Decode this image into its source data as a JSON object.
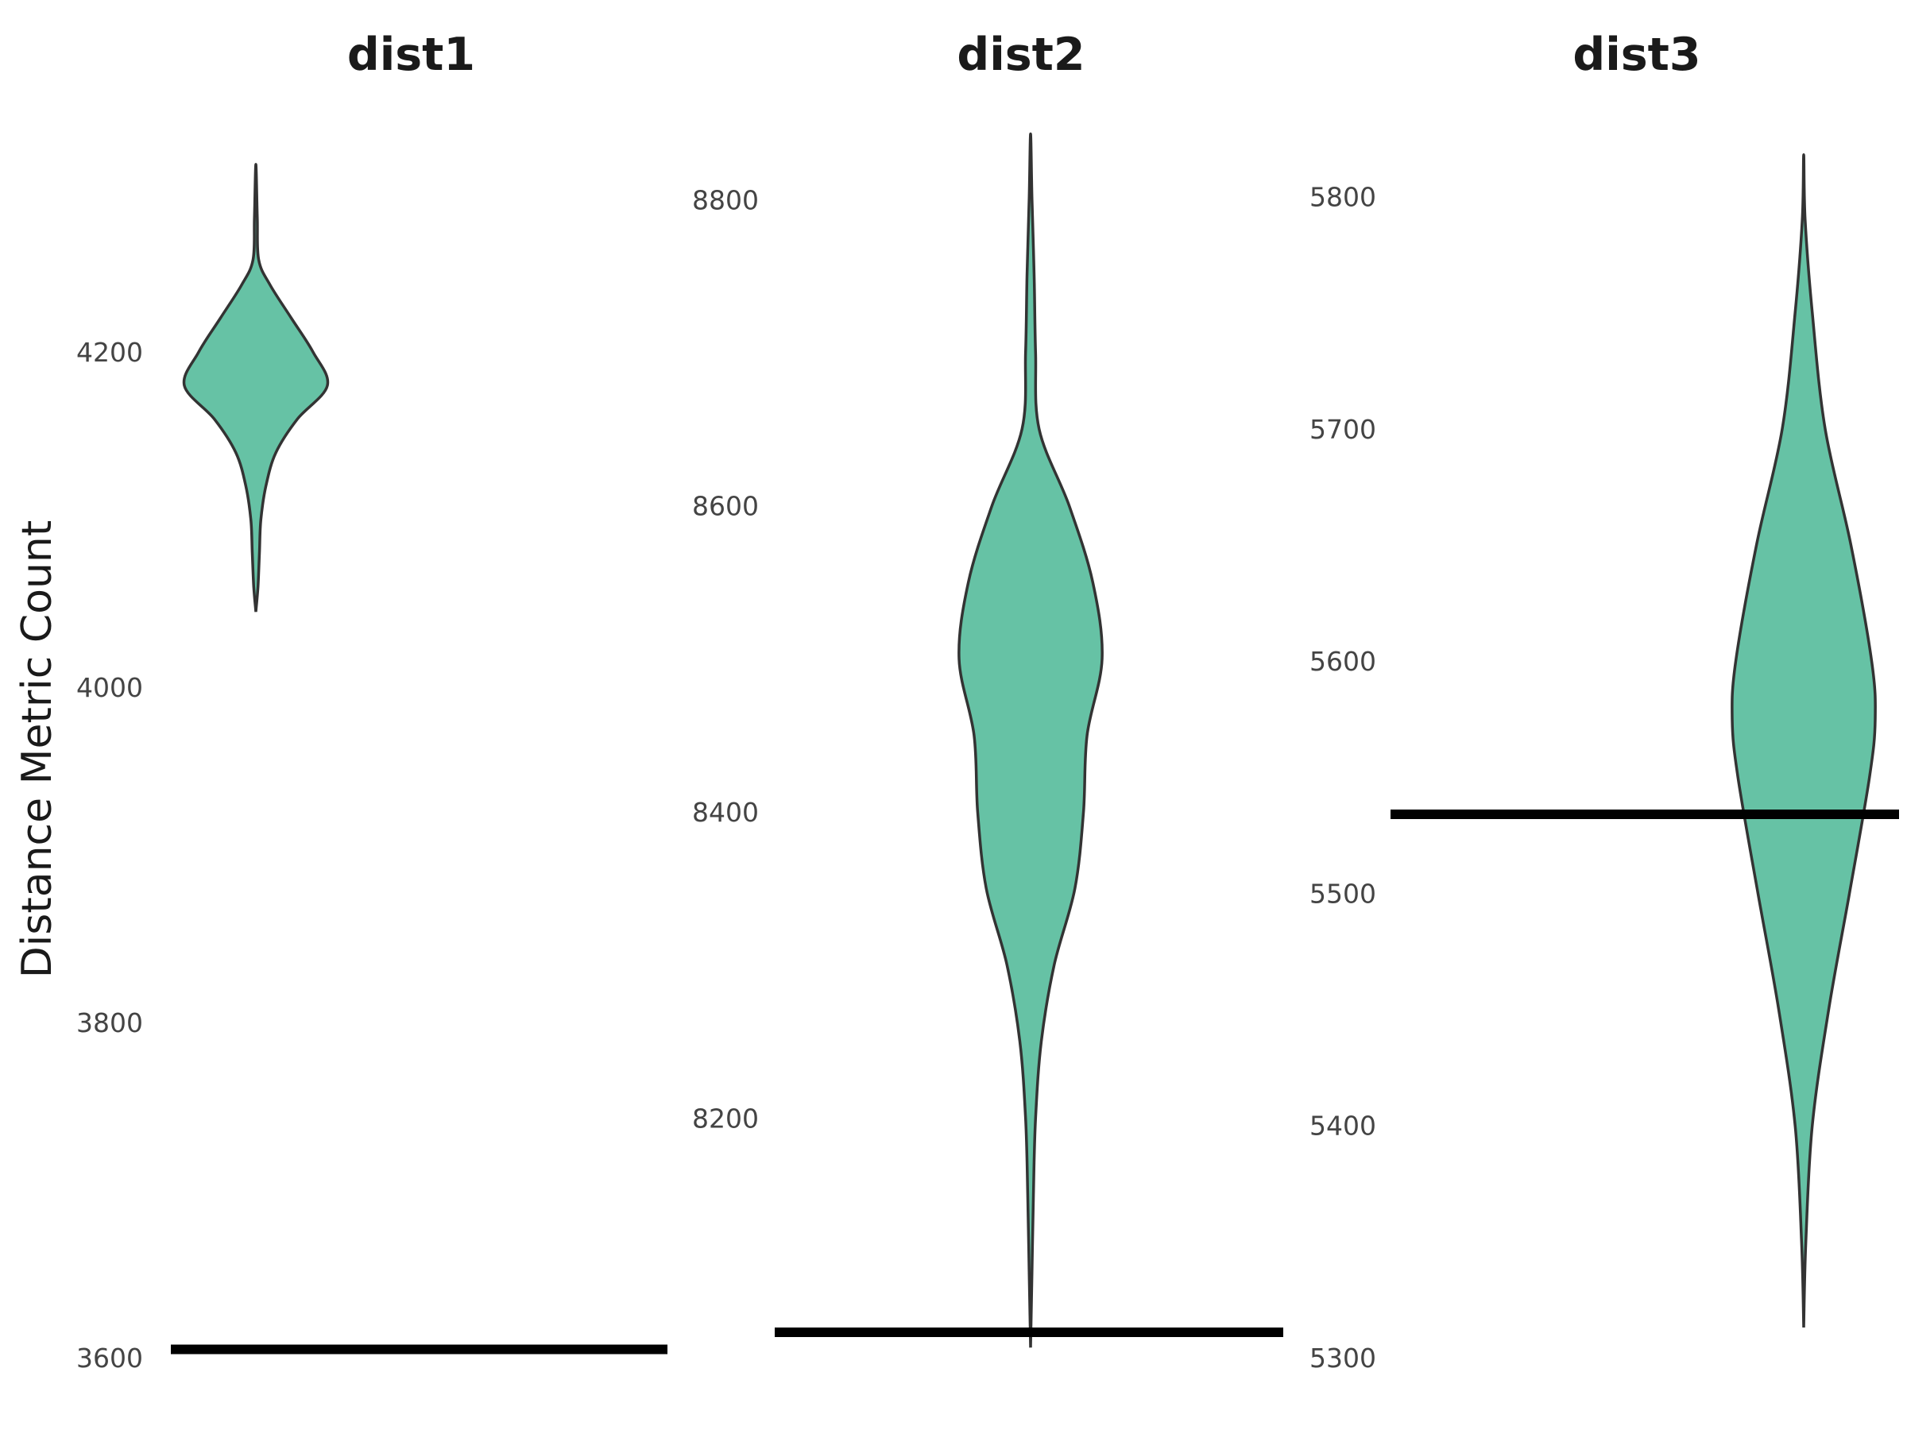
{
  "chart_data": {
    "type": "violin",
    "ylabel": "Distance Metric Count",
    "fill_color": "#66c2a5",
    "outline_color": "#333333",
    "reference_line_color": "#000000",
    "grid": false,
    "legend": "none",
    "panels": [
      {
        "title": "dist1",
        "ylim": [
          3600,
          4320
        ],
        "yticks": [
          3600,
          3800,
          4000,
          4200
        ],
        "tick_labels": [
          "3600",
          "3800",
          "4000",
          "4200"
        ],
        "reference_line": 3605,
        "density": [
          {
            "y": 4045,
            "w": 0.0
          },
          {
            "y": 4060,
            "w": 0.03
          },
          {
            "y": 4080,
            "w": 0.05
          },
          {
            "y": 4100,
            "w": 0.07
          },
          {
            "y": 4120,
            "w": 0.14
          },
          {
            "y": 4140,
            "w": 0.28
          },
          {
            "y": 4160,
            "w": 0.58
          },
          {
            "y": 4180,
            "w": 1.0
          },
          {
            "y": 4200,
            "w": 0.8
          },
          {
            "y": 4220,
            "w": 0.5
          },
          {
            "y": 4240,
            "w": 0.2
          },
          {
            "y": 4255,
            "w": 0.04
          },
          {
            "y": 4280,
            "w": 0.02
          },
          {
            "y": 4312,
            "w": 0.0
          }
        ]
      },
      {
        "title": "dist2",
        "ylim": [
          8060,
          8850
        ],
        "yticks": [
          8200,
          8400,
          8600,
          8800
        ],
        "tick_labels": [
          "8200",
          "8400",
          "8600",
          "8800"
        ],
        "reference_line": 8060,
        "density": [
          {
            "y": 8050,
            "w": 0.0
          },
          {
            "y": 8100,
            "w": 0.02
          },
          {
            "y": 8150,
            "w": 0.04
          },
          {
            "y": 8200,
            "w": 0.07
          },
          {
            "y": 8250,
            "w": 0.15
          },
          {
            "y": 8300,
            "w": 0.33
          },
          {
            "y": 8350,
            "w": 0.62
          },
          {
            "y": 8400,
            "w": 0.74
          },
          {
            "y": 8450,
            "w": 0.79
          },
          {
            "y": 8500,
            "w": 1.0
          },
          {
            "y": 8550,
            "w": 0.87
          },
          {
            "y": 8600,
            "w": 0.54
          },
          {
            "y": 8650,
            "w": 0.12
          },
          {
            "y": 8700,
            "w": 0.07
          },
          {
            "y": 8750,
            "w": 0.05
          },
          {
            "y": 8800,
            "w": 0.02
          },
          {
            "y": 8843,
            "w": 0.0
          }
        ]
      },
      {
        "title": "dist3",
        "ylim": [
          5300,
          5820
        ],
        "yticks": [
          5300,
          5400,
          5500,
          5600,
          5700,
          5800
        ],
        "tick_labels": [
          "5300",
          "5400",
          "5500",
          "5600",
          "5700",
          "5800"
        ],
        "reference_line": 5534,
        "density": [
          {
            "y": 5313,
            "w": 0.0
          },
          {
            "y": 5350,
            "w": 0.03
          },
          {
            "y": 5400,
            "w": 0.12
          },
          {
            "y": 5450,
            "w": 0.35
          },
          {
            "y": 5500,
            "w": 0.64
          },
          {
            "y": 5550,
            "w": 0.92
          },
          {
            "y": 5575,
            "w": 1.0
          },
          {
            "y": 5600,
            "w": 0.95
          },
          {
            "y": 5650,
            "w": 0.66
          },
          {
            "y": 5700,
            "w": 0.3
          },
          {
            "y": 5750,
            "w": 0.12
          },
          {
            "y": 5790,
            "w": 0.02
          },
          {
            "y": 5818,
            "w": 0.0
          }
        ]
      }
    ]
  }
}
